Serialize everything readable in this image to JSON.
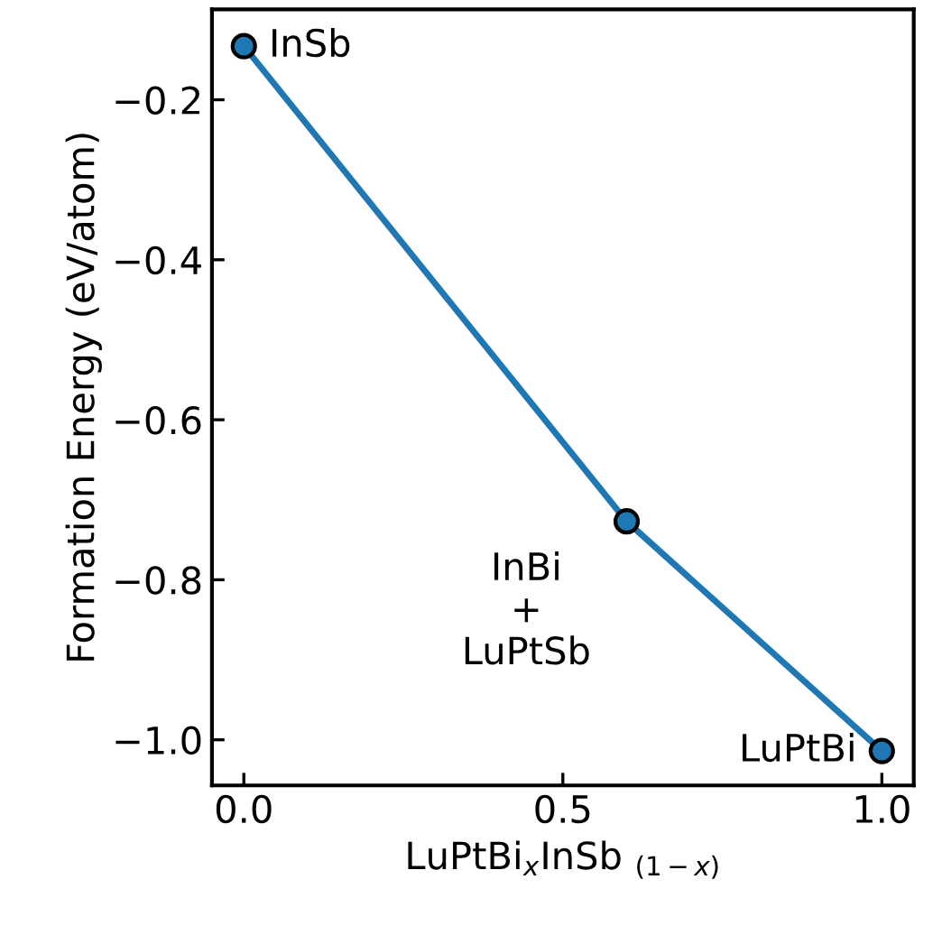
{
  "chart_data": {
    "type": "line",
    "xlabel": "LuPtBi$_{x}$InSb $_{(1−x)}$",
    "ylabel": "Formation Energy (eV/atom)",
    "x": [
      0,
      0.6,
      1.0
    ],
    "series": [
      {
        "color": "#1f77b4",
        "values": [
          -0.133,
          -0.727,
          -1.014
        ]
      }
    ],
    "marker": "circle",
    "line_style": "solid",
    "xlim": [
      -0.05,
      1.05
    ],
    "ylim": [
      -1.057,
      -0.087
    ],
    "xticks": [
      {
        "value": 0,
        "label": "0.0"
      },
      0.5,
      {
        "value": 1,
        "label": "1.0"
      }
    ],
    "yticks": [
      {
        "value": -1.0,
        "label": "−1.0"
      },
      {
        "value": -0.8,
        "label": "−0.8"
      },
      {
        "value": -0.6,
        "label": "−0.6"
      },
      {
        "value": -0.4,
        "label": "−0.4"
      },
      {
        "value": -0.2,
        "label": "−0.2"
      }
    ],
    "annotations": [
      {
        "text": "InSb",
        "x": 0,
        "y": -0.133
      },
      {
        "text": "InBi\n+\nLuPtSb",
        "x": 0.6,
        "y": -0.727
      },
      {
        "text": "LuPtBi",
        "x": 1.0,
        "y": -1.014
      }
    ],
    "grid": false,
    "legend": false
  }
}
